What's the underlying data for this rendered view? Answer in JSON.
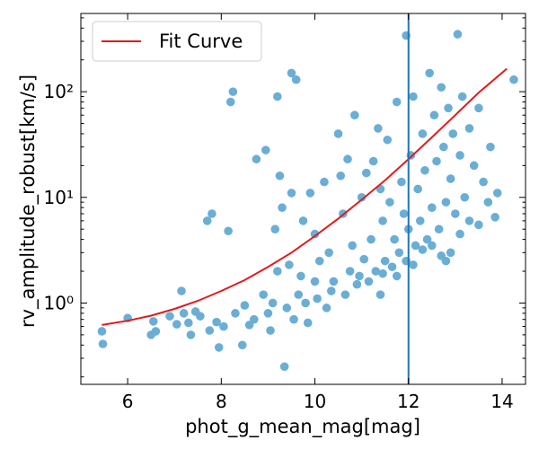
{
  "chart_data": {
    "type": "scatter",
    "title": "",
    "xlabel": "phot_g_mean_mag[mag]",
    "ylabel": "rv_amplitude_robust[km/s]",
    "xlim": [
      5.0,
      14.5
    ],
    "ylim": [
      0.17,
      550
    ],
    "yscale": "log",
    "x_ticks": [
      6,
      8,
      10,
      12,
      14
    ],
    "y_ticks": [
      1,
      10,
      100
    ],
    "y_tick_labels": [
      "10⁰",
      "10¹",
      "10²"
    ],
    "grid": false,
    "legend": {
      "placement": "top-left",
      "entries": [
        "Fit Curve"
      ]
    },
    "vline": {
      "x": 12.0,
      "color": "#1f77b4"
    },
    "colors": {
      "points": "#6aaed6",
      "fit": "#e31a1c",
      "vline": "#1f77b4"
    },
    "series": [
      {
        "type": "scatter",
        "points": [
          [
            5.45,
            0.54
          ],
          [
            5.47,
            0.41
          ],
          [
            6.0,
            0.72
          ],
          [
            6.5,
            0.5
          ],
          [
            6.55,
            0.67
          ],
          [
            6.6,
            0.54
          ],
          [
            6.9,
            0.75
          ],
          [
            7.05,
            0.63
          ],
          [
            7.15,
            1.3
          ],
          [
            7.2,
            0.8
          ],
          [
            7.3,
            0.65
          ],
          [
            7.35,
            0.5
          ],
          [
            7.45,
            0.83
          ],
          [
            7.55,
            0.75
          ],
          [
            7.7,
            6.0
          ],
          [
            7.75,
            0.55
          ],
          [
            7.8,
            7.0
          ],
          [
            7.9,
            0.66
          ],
          [
            7.95,
            0.38
          ],
          [
            8.05,
            0.6
          ],
          [
            8.15,
            4.8
          ],
          [
            8.2,
            80.0
          ],
          [
            8.3,
            0.8
          ],
          [
            8.45,
            0.4
          ],
          [
            8.6,
            0.62
          ],
          [
            8.75,
            23.0
          ],
          [
            8.9,
            1.2
          ],
          [
            8.95,
            28.0
          ],
          [
            9.0,
            0.8
          ],
          [
            9.1,
            1.0
          ],
          [
            9.15,
            5.0
          ],
          [
            9.2,
            2.0
          ],
          [
            9.25,
            16.0
          ],
          [
            9.3,
            8.0
          ],
          [
            9.35,
            0.25
          ],
          [
            9.4,
            0.9
          ],
          [
            9.45,
            2.3
          ],
          [
            9.5,
            11.0
          ],
          [
            9.6,
            130.0
          ],
          [
            9.7,
            1.8
          ],
          [
            9.75,
            6.0
          ],
          [
            9.8,
            1.0
          ],
          [
            9.9,
            11.0
          ],
          [
            10.0,
            4.5
          ],
          [
            10.1,
            2.5
          ],
          [
            10.2,
            14.0
          ],
          [
            10.3,
            3.0
          ],
          [
            10.35,
            1.3
          ],
          [
            10.5,
            40.0
          ],
          [
            10.55,
            16.0
          ],
          [
            10.6,
            7.0
          ],
          [
            10.7,
            23.0
          ],
          [
            10.8,
            3.5
          ],
          [
            10.85,
            60.0
          ],
          [
            10.9,
            1.5
          ],
          [
            11.0,
            10.0
          ],
          [
            11.1,
            17.0
          ],
          [
            11.2,
            4.0
          ],
          [
            11.25,
            22.0
          ],
          [
            11.3,
            2.0
          ],
          [
            11.35,
            45.0
          ],
          [
            11.4,
            12.0
          ],
          [
            11.45,
            6.0
          ],
          [
            11.5,
            2.5
          ],
          [
            11.55,
            35.0
          ],
          [
            11.6,
            9.0
          ],
          [
            11.7,
            4.0
          ],
          [
            11.75,
            80.0
          ],
          [
            11.8,
            3.0
          ],
          [
            11.85,
            14.0
          ],
          [
            11.9,
            7.0
          ],
          [
            11.95,
            340.0
          ],
          [
            12.0,
            5.0
          ],
          [
            12.05,
            25.0
          ],
          [
            12.1,
            90.0
          ],
          [
            12.15,
            3.5
          ],
          [
            12.2,
            12.0
          ],
          [
            12.25,
            6.0
          ],
          [
            12.3,
            40.0
          ],
          [
            12.35,
            18.0
          ],
          [
            12.4,
            4.0
          ],
          [
            12.45,
            150.0
          ],
          [
            12.5,
            8.0
          ],
          [
            12.55,
            60.0
          ],
          [
            12.6,
            22.0
          ],
          [
            12.65,
            5.0
          ],
          [
            12.7,
            110.0
          ],
          [
            12.75,
            30.0
          ],
          [
            12.8,
            9.0
          ],
          [
            12.85,
            70.0
          ],
          [
            12.9,
            15.0
          ],
          [
            12.95,
            40.0
          ],
          [
            13.0,
            7.0
          ],
          [
            13.05,
            350.0
          ],
          [
            13.1,
            25.0
          ],
          [
            13.15,
            90.0
          ],
          [
            13.2,
            10.0
          ],
          [
            13.3,
            45.0
          ],
          [
            13.4,
            20.0
          ],
          [
            13.5,
            70.0
          ],
          [
            13.6,
            14.0
          ],
          [
            13.75,
            30.0
          ],
          [
            13.9,
            11.0
          ],
          [
            14.25,
            130.0
          ],
          [
            8.5,
            0.95
          ],
          [
            8.7,
            0.7
          ],
          [
            9.05,
            0.55
          ],
          [
            9.55,
            0.7
          ],
          [
            9.65,
            1.2
          ],
          [
            9.85,
            0.65
          ],
          [
            10.05,
            1.1
          ],
          [
            10.25,
            0.9
          ],
          [
            10.4,
            1.6
          ],
          [
            10.65,
            1.2
          ],
          [
            10.75,
            2.0
          ],
          [
            10.95,
            1.8
          ],
          [
            11.05,
            2.6
          ],
          [
            11.15,
            1.6
          ],
          [
            11.45,
            1.9
          ],
          [
            11.65,
            2.2
          ],
          [
            11.75,
            1.8
          ],
          [
            11.95,
            2.5
          ],
          [
            12.1,
            2.3
          ],
          [
            12.3,
            3.2
          ],
          [
            12.5,
            3.5
          ],
          [
            12.7,
            2.8
          ],
          [
            12.9,
            3.0
          ],
          [
            13.1,
            4.5
          ],
          [
            13.3,
            6.0
          ],
          [
            13.5,
            5.5
          ],
          [
            13.7,
            9.0
          ],
          [
            13.85,
            6.5
          ],
          [
            8.25,
            100.0
          ],
          [
            9.2,
            90.0
          ],
          [
            9.5,
            150.0
          ],
          [
            10.0,
            1.6
          ],
          [
            11.4,
            1.2
          ],
          [
            12.8,
            2.5
          ]
        ]
      },
      {
        "type": "line",
        "name": "Fit Curve",
        "points": [
          [
            5.45,
            0.62
          ],
          [
            6.0,
            0.68
          ],
          [
            6.5,
            0.76
          ],
          [
            7.0,
            0.88
          ],
          [
            7.5,
            1.05
          ],
          [
            8.0,
            1.3
          ],
          [
            8.5,
            1.65
          ],
          [
            9.0,
            2.2
          ],
          [
            9.5,
            3.0
          ],
          [
            10.0,
            4.3
          ],
          [
            10.5,
            6.3
          ],
          [
            11.0,
            9.5
          ],
          [
            11.5,
            14.5
          ],
          [
            12.0,
            23.0
          ],
          [
            12.5,
            37.0
          ],
          [
            13.0,
            60.0
          ],
          [
            13.5,
            98.0
          ],
          [
            14.1,
            165.0
          ]
        ]
      }
    ]
  }
}
